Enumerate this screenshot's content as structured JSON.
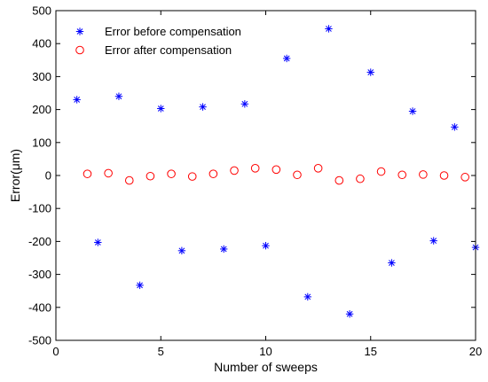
{
  "chart_data": {
    "type": "scatter",
    "title": "",
    "xlabel": "Number of sweeps",
    "ylabel": "Error(μm)",
    "xlim": [
      0,
      20
    ],
    "ylim": [
      -500,
      500
    ],
    "xticks": [
      0,
      5,
      10,
      15,
      20
    ],
    "yticks": [
      -500,
      -400,
      -300,
      -200,
      -100,
      0,
      100,
      200,
      300,
      400,
      500
    ],
    "grid": false,
    "legend_position": "top-left",
    "series": [
      {
        "name": "Error before compensation",
        "marker": "asterisk",
        "color": "#0000ff",
        "x": [
          1,
          2,
          3,
          4,
          5,
          6,
          7,
          8,
          9,
          10,
          11,
          12,
          13,
          14,
          15,
          16,
          17,
          18,
          19,
          20
        ],
        "y": [
          230,
          -203,
          240,
          -333,
          203,
          -228,
          208,
          -223,
          217,
          -213,
          355,
          -368,
          445,
          -420,
          313,
          -265,
          195,
          -198,
          147,
          -218
        ]
      },
      {
        "name": "Error after compensation",
        "marker": "circle",
        "color": "#ff0000",
        "x": [
          1.5,
          2.5,
          3.5,
          4.5,
          5.5,
          6.5,
          7.5,
          8.5,
          9.5,
          10.5,
          11.5,
          12.5,
          13.5,
          14.5,
          15.5,
          16.5,
          17.5,
          18.5,
          19.5
        ],
        "y": [
          5,
          7,
          -15,
          -2,
          5,
          -3,
          5,
          15,
          22,
          18,
          2,
          22,
          -15,
          -10,
          12,
          2,
          3,
          0,
          -5
        ]
      }
    ]
  }
}
